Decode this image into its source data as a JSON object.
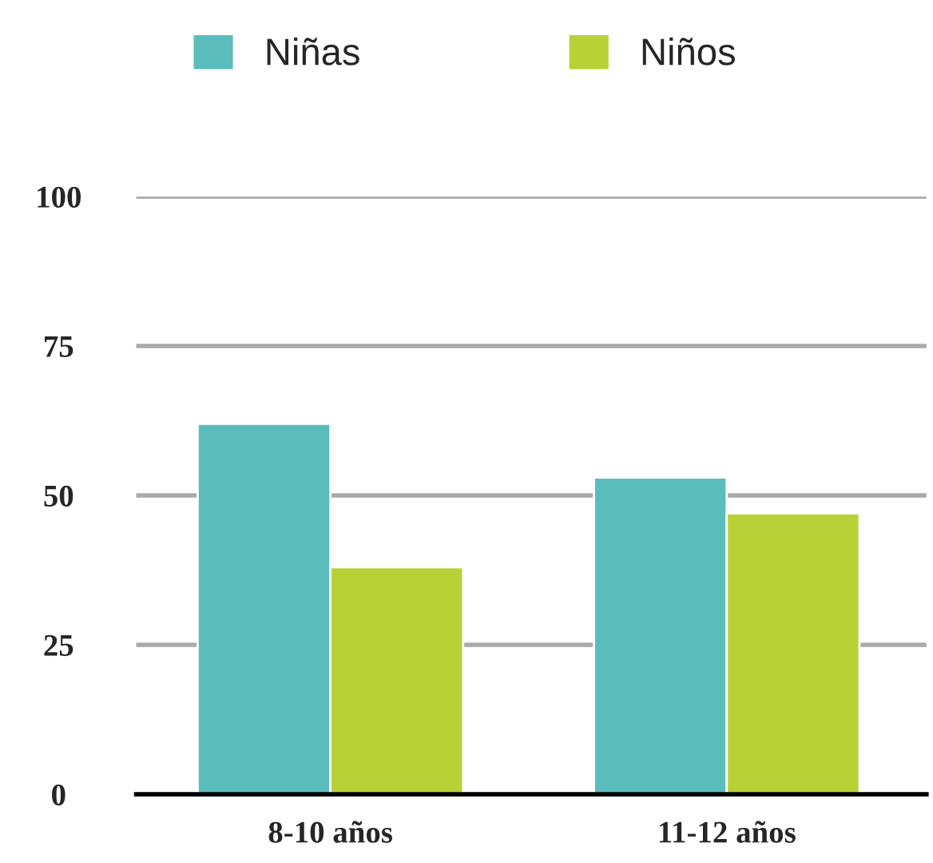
{
  "chart_data": {
    "type": "bar",
    "categories": [
      "8-10 años",
      "11-12 años"
    ],
    "series": [
      {
        "name": "Niñas",
        "color": "#5bbcbc",
        "values": [
          62,
          53
        ]
      },
      {
        "name": "Niños",
        "color": "#b8d136",
        "values": [
          38,
          47
        ]
      }
    ],
    "ylim": [
      0,
      100
    ],
    "yticks": [
      0,
      25,
      50,
      75,
      100
    ],
    "grid": "y",
    "legend": "top"
  }
}
